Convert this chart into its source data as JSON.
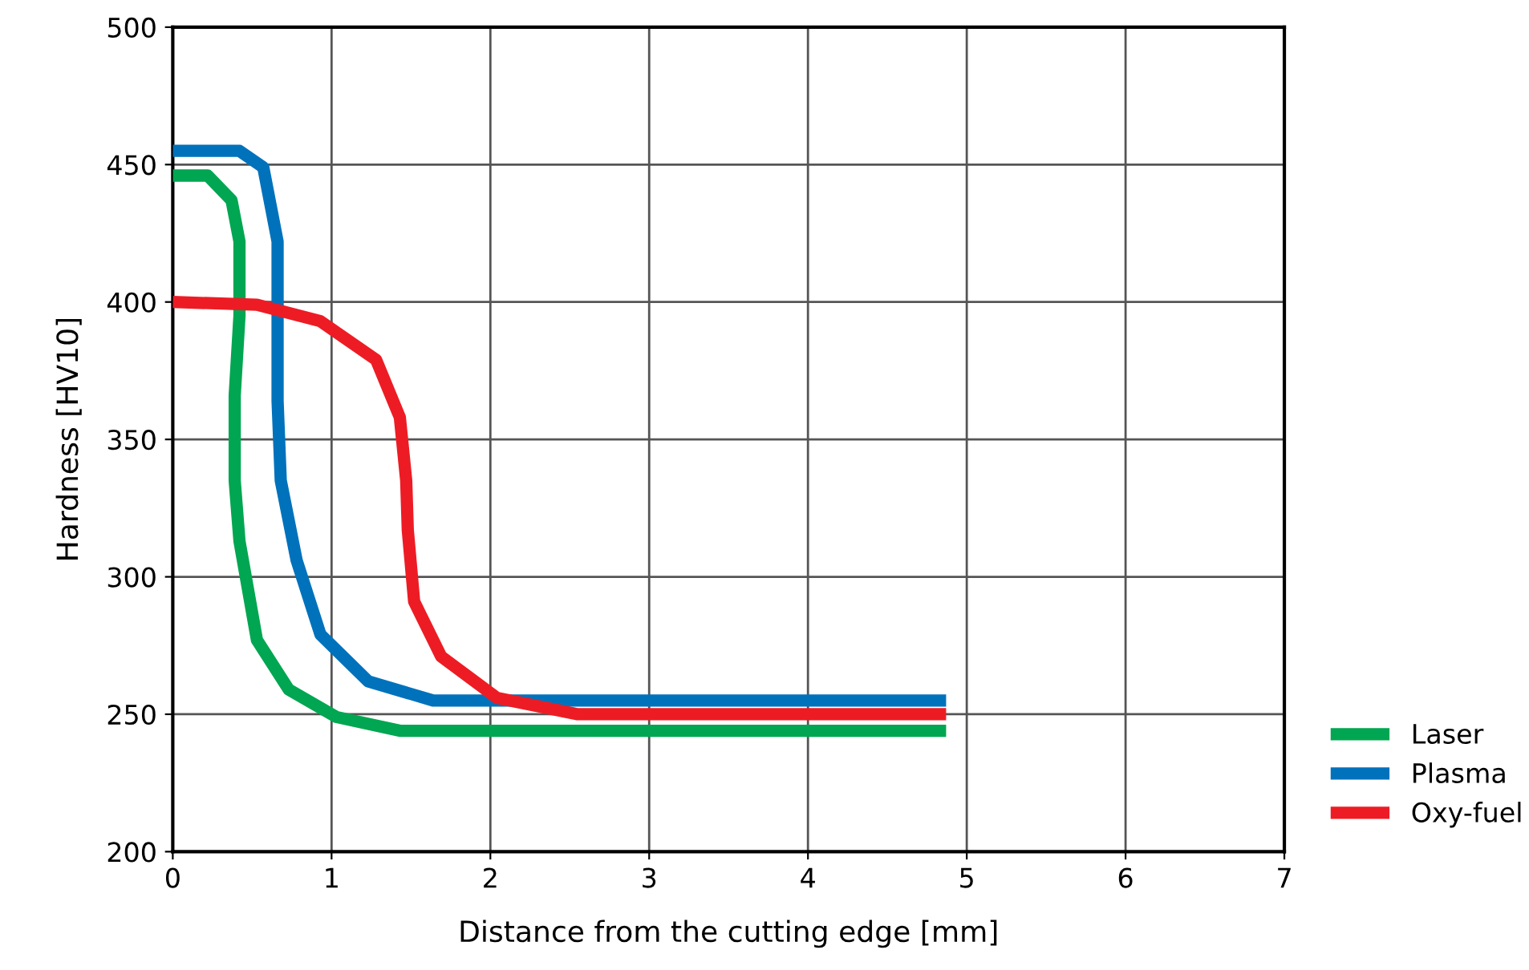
{
  "chart_data": {
    "type": "line",
    "xlabel": "Distance from the cutting edge [mm]",
    "ylabel": "Hardness [HV10]",
    "xlim": [
      0,
      7
    ],
    "ylim": [
      200,
      500
    ],
    "xticks": [
      0,
      1,
      2,
      3,
      4,
      5,
      6,
      7
    ],
    "yticks": [
      200,
      250,
      300,
      350,
      400,
      450,
      500
    ],
    "grid": true,
    "legend": "right",
    "marker": "none",
    "line_style": "solid",
    "series": [
      {
        "name": "Laser",
        "color": "#00a651",
        "x": [
          0,
          0.22,
          0.37,
          0.42,
          0.42,
          0.39,
          0.39,
          0.42,
          0.53,
          0.73,
          1.03,
          1.43,
          4.87
        ],
        "values": [
          446,
          446,
          437,
          422,
          395,
          366,
          335,
          313,
          277,
          259,
          249,
          244,
          244
        ]
      },
      {
        "name": "Plasma",
        "color": "#0072bc",
        "x": [
          0,
          0.42,
          0.57,
          0.66,
          0.66,
          0.68,
          0.78,
          0.93,
          1.23,
          1.64,
          4.87
        ],
        "values": [
          455,
          455,
          449,
          422,
          364,
          335,
          306,
          279,
          262,
          255,
          255
        ]
      },
      {
        "name": "Oxy-fuel",
        "color": "#ed1c24",
        "x": [
          0,
          0.53,
          0.93,
          1.28,
          1.43,
          1.47,
          1.48,
          1.52,
          1.69,
          2.04,
          2.55,
          4.87
        ],
        "values": [
          400,
          399,
          393,
          379,
          358,
          335,
          317,
          291,
          271,
          256,
          250,
          250
        ]
      }
    ]
  }
}
